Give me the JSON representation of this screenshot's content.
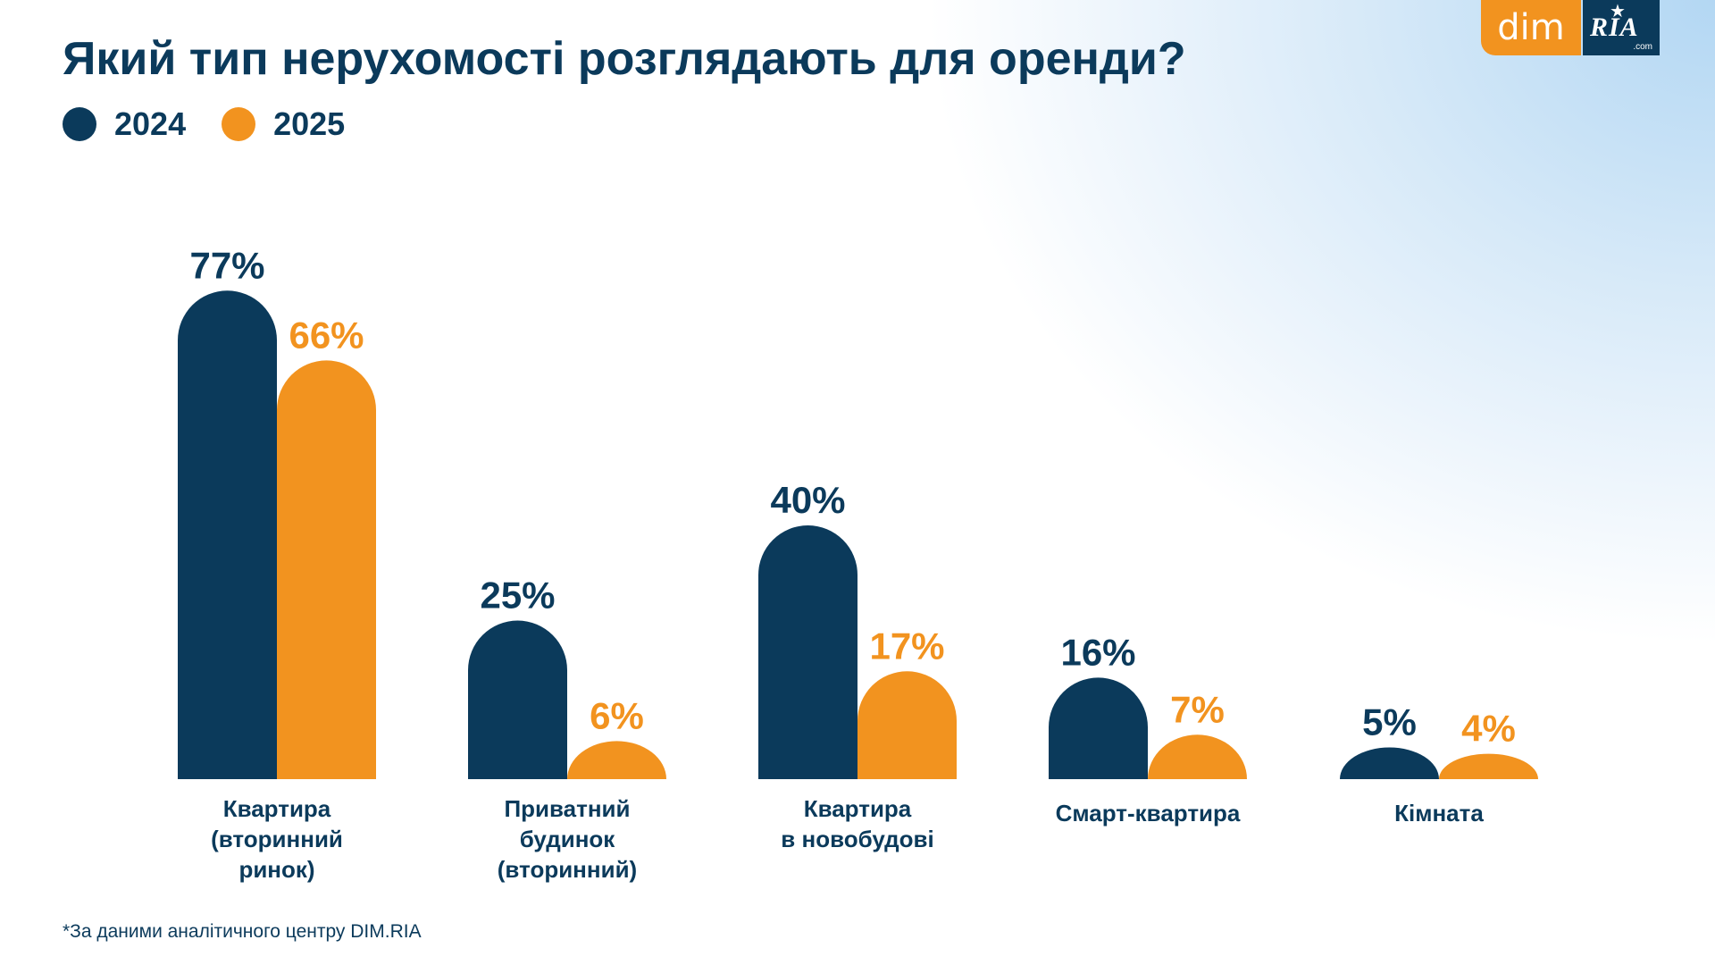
{
  "title": "Який тип нерухомості розглядають для оренди?",
  "logo": {
    "dim": "dim",
    "ria": "RIA",
    "ria_suffix": ".com"
  },
  "legend": [
    {
      "label": "2024",
      "color": "#0b3a5b"
    },
    {
      "label": "2025",
      "color": "#f2931f"
    }
  ],
  "footnote": "*За даними аналітичного центру DIM.RIA",
  "chart_data": {
    "type": "bar",
    "title": "Який тип нерухомості розглядають для оренди?",
    "categories": [
      "Квартира\n(вторинний\nринок)",
      "Приватний\nбудинок\n(вторинний)",
      "Квартира\nв новобудові",
      "Смарт-квартира",
      "Кімната"
    ],
    "series": [
      {
        "name": "2024",
        "color": "#0b3a5b",
        "values": [
          77,
          25,
          40,
          16,
          5
        ],
        "labels": [
          "77%",
          "25%",
          "40%",
          "16%",
          "5%"
        ]
      },
      {
        "name": "2025",
        "color": "#f2931f",
        "values": [
          66,
          6,
          17,
          7,
          4
        ],
        "labels": [
          "66%",
          "6%",
          "17%",
          "7%",
          "4%"
        ]
      }
    ],
    "value_unit": "%",
    "ylim": [
      0,
      100
    ],
    "grid": false,
    "legend_position": "top-left",
    "xlabel": "",
    "ylabel": ""
  }
}
